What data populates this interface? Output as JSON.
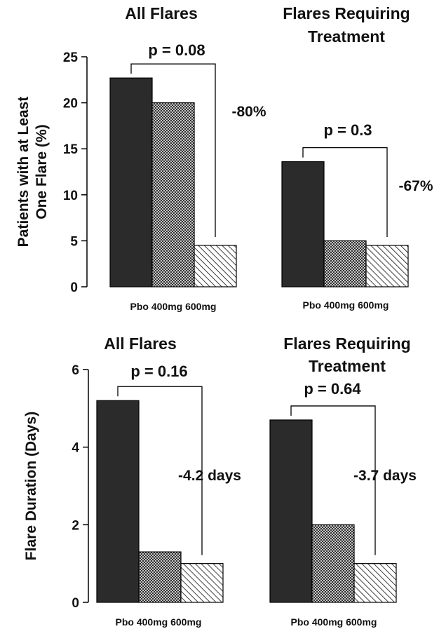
{
  "colors": {
    "pbo": "#2b2b2b",
    "bar_stroke": "#000000",
    "axis": "#000000"
  },
  "categories": [
    "Pbo",
    "400mg",
    "600mg"
  ],
  "chart_data": [
    {
      "type": "bar",
      "ylabel": "Patients with at Least One Flare (%)",
      "ylim": [
        0,
        25
      ],
      "yticks": [
        "0",
        "5",
        "10",
        "15",
        "20",
        "25"
      ],
      "groups": [
        {
          "title": [
            "All Flares"
          ],
          "xlabel": "Pbo 400mg 600mg",
          "values": [
            22.7,
            20.0,
            4.5
          ],
          "pvalue": "p = 0.08",
          "change": "-80%"
        },
        {
          "title": [
            "Flares Requiring",
            "Treatment"
          ],
          "xlabel": "Pbo 400mg 600mg",
          "values": [
            13.6,
            5.0,
            4.5
          ],
          "pvalue": "p = 0.3",
          "change": "-67%"
        }
      ]
    },
    {
      "type": "bar",
      "ylabel": "Flare Duration (Days)",
      "ylim": [
        0,
        6
      ],
      "yticks": [
        "0",
        "2",
        "4",
        "6"
      ],
      "groups": [
        {
          "title": [
            "All Flares"
          ],
          "xlabel": "Pbo 400mg 600mg",
          "values": [
            5.2,
            1.3,
            1.0
          ],
          "pvalue": "p = 0.16",
          "change": "-4.2 days"
        },
        {
          "title": [
            "Flares Requiring",
            "Treatment"
          ],
          "xlabel": "Pbo 400mg 600mg",
          "values": [
            4.7,
            2.0,
            1.0
          ],
          "pvalue": "p = 0.64",
          "change": "-3.7 days"
        }
      ]
    }
  ]
}
